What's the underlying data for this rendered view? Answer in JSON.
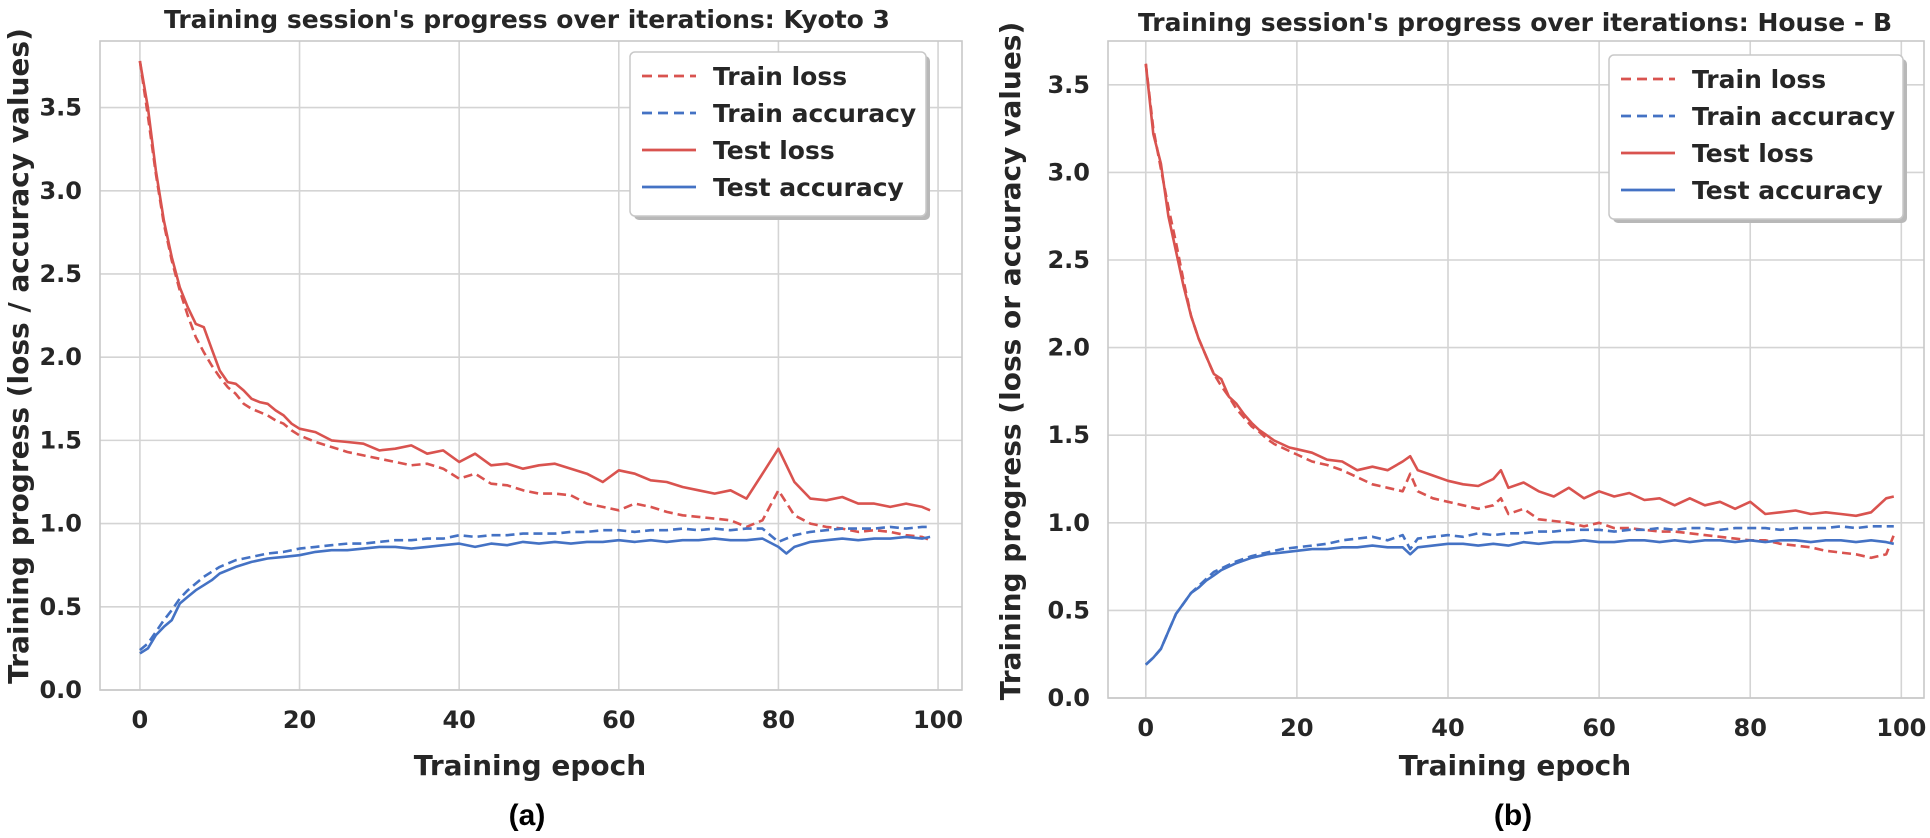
{
  "colors": {
    "red": "#d9534f",
    "blue": "#4472c4"
  },
  "legend_entries": [
    {
      "label": "Train loss",
      "color": "#d9534f",
      "dash": true
    },
    {
      "label": "Train accuracy",
      "color": "#4472c4",
      "dash": true
    },
    {
      "label": "Test loss",
      "color": "#d9534f",
      "dash": false
    },
    {
      "label": "Test accuracy",
      "color": "#4472c4",
      "dash": false
    }
  ],
  "chart_data": [
    {
      "type": "line",
      "panel": "(a)",
      "title": "Training session's progress over iterations: Kyoto 3",
      "xlabel": "Training epoch",
      "ylabel": "Training progress (loss / accuracy values)",
      "xlim": [
        -5,
        103
      ],
      "ylim": [
        0.0,
        3.9
      ],
      "xticks": [
        0,
        20,
        40,
        60,
        80,
        100
      ],
      "yticks": [
        0.0,
        0.5,
        1.0,
        1.5,
        2.0,
        2.5,
        3.0,
        3.5
      ],
      "legend_position": "top-right",
      "grid": true,
      "series": [
        {
          "name": "Train loss",
          "color": "#d9534f",
          "dash": true,
          "x": [
            0,
            1,
            2,
            3,
            4,
            5,
            6,
            7,
            8,
            9,
            10,
            11,
            12,
            13,
            14,
            15,
            16,
            17,
            18,
            19,
            20,
            22,
            24,
            26,
            28,
            30,
            32,
            34,
            36,
            38,
            40,
            42,
            44,
            46,
            48,
            50,
            52,
            54,
            56,
            58,
            60,
            62,
            64,
            66,
            68,
            70,
            72,
            74,
            76,
            78,
            80,
            82,
            84,
            86,
            88,
            90,
            92,
            94,
            96,
            98,
            99
          ],
          "y": [
            3.78,
            3.45,
            3.1,
            2.8,
            2.58,
            2.4,
            2.25,
            2.12,
            2.03,
            1.95,
            1.88,
            1.82,
            1.78,
            1.72,
            1.69,
            1.67,
            1.65,
            1.62,
            1.6,
            1.56,
            1.53,
            1.49,
            1.46,
            1.43,
            1.41,
            1.39,
            1.37,
            1.35,
            1.36,
            1.33,
            1.27,
            1.3,
            1.24,
            1.23,
            1.2,
            1.18,
            1.18,
            1.17,
            1.12,
            1.1,
            1.08,
            1.12,
            1.1,
            1.07,
            1.05,
            1.04,
            1.03,
            1.02,
            0.98,
            1.02,
            1.2,
            1.05,
            1.0,
            0.98,
            0.97,
            0.95,
            0.96,
            0.95,
            0.93,
            0.92,
            0.9
          ]
        },
        {
          "name": "Train accuracy",
          "color": "#4472c4",
          "dash": true,
          "x": [
            0,
            1,
            2,
            3,
            4,
            5,
            6,
            7,
            8,
            9,
            10,
            12,
            14,
            16,
            18,
            20,
            22,
            24,
            26,
            28,
            30,
            32,
            34,
            36,
            38,
            40,
            42,
            44,
            46,
            48,
            50,
            52,
            54,
            56,
            58,
            60,
            62,
            64,
            66,
            68,
            70,
            72,
            74,
            76,
            78,
            80,
            82,
            84,
            86,
            88,
            90,
            92,
            94,
            96,
            98,
            99
          ],
          "y": [
            0.24,
            0.28,
            0.35,
            0.42,
            0.48,
            0.55,
            0.6,
            0.64,
            0.68,
            0.71,
            0.74,
            0.78,
            0.8,
            0.82,
            0.83,
            0.85,
            0.86,
            0.87,
            0.88,
            0.88,
            0.89,
            0.9,
            0.9,
            0.91,
            0.91,
            0.93,
            0.92,
            0.93,
            0.93,
            0.94,
            0.94,
            0.94,
            0.95,
            0.95,
            0.96,
            0.96,
            0.95,
            0.96,
            0.96,
            0.97,
            0.96,
            0.97,
            0.96,
            0.97,
            0.97,
            0.89,
            0.93,
            0.95,
            0.96,
            0.97,
            0.97,
            0.97,
            0.98,
            0.97,
            0.98,
            0.98
          ]
        },
        {
          "name": "Test loss",
          "color": "#d9534f",
          "dash": false,
          "x": [
            0,
            1,
            2,
            3,
            4,
            5,
            6,
            7,
            8,
            9,
            10,
            11,
            12,
            13,
            14,
            15,
            16,
            17,
            18,
            19,
            20,
            22,
            24,
            26,
            28,
            30,
            32,
            34,
            36,
            38,
            40,
            42,
            44,
            46,
            48,
            50,
            52,
            54,
            56,
            58,
            60,
            62,
            64,
            66,
            68,
            70,
            72,
            74,
            76,
            78,
            80,
            81,
            82,
            84,
            86,
            88,
            90,
            92,
            94,
            96,
            98,
            99
          ],
          "y": [
            3.78,
            3.5,
            3.12,
            2.82,
            2.6,
            2.42,
            2.3,
            2.2,
            2.18,
            2.05,
            1.92,
            1.85,
            1.84,
            1.8,
            1.75,
            1.73,
            1.72,
            1.68,
            1.65,
            1.6,
            1.57,
            1.55,
            1.5,
            1.49,
            1.48,
            1.44,
            1.45,
            1.47,
            1.42,
            1.44,
            1.37,
            1.42,
            1.35,
            1.36,
            1.33,
            1.35,
            1.36,
            1.33,
            1.3,
            1.25,
            1.32,
            1.3,
            1.26,
            1.25,
            1.22,
            1.2,
            1.18,
            1.2,
            1.15,
            1.3,
            1.45,
            1.35,
            1.25,
            1.15,
            1.14,
            1.16,
            1.12,
            1.12,
            1.1,
            1.12,
            1.1,
            1.08
          ]
        },
        {
          "name": "Test accuracy",
          "color": "#4472c4",
          "dash": false,
          "x": [
            0,
            1,
            2,
            3,
            4,
            5,
            6,
            7,
            8,
            9,
            10,
            12,
            14,
            16,
            18,
            20,
            22,
            24,
            26,
            28,
            30,
            32,
            34,
            36,
            38,
            40,
            42,
            44,
            46,
            48,
            50,
            52,
            54,
            56,
            58,
            60,
            62,
            64,
            66,
            68,
            70,
            72,
            74,
            76,
            78,
            80,
            81,
            82,
            84,
            86,
            88,
            90,
            92,
            94,
            96,
            98,
            99
          ],
          "y": [
            0.22,
            0.25,
            0.33,
            0.38,
            0.42,
            0.52,
            0.56,
            0.6,
            0.63,
            0.66,
            0.7,
            0.74,
            0.77,
            0.79,
            0.8,
            0.81,
            0.83,
            0.84,
            0.84,
            0.85,
            0.86,
            0.86,
            0.85,
            0.86,
            0.87,
            0.88,
            0.86,
            0.88,
            0.87,
            0.89,
            0.88,
            0.89,
            0.88,
            0.89,
            0.89,
            0.9,
            0.89,
            0.9,
            0.89,
            0.9,
            0.9,
            0.91,
            0.9,
            0.9,
            0.91,
            0.86,
            0.82,
            0.86,
            0.89,
            0.9,
            0.91,
            0.9,
            0.91,
            0.91,
            0.92,
            0.91,
            0.92
          ]
        }
      ]
    },
    {
      "type": "line",
      "panel": "(b)",
      "title": "Training session's progress over iterations: House - B",
      "xlabel": "Training epoch",
      "ylabel": "Training progress (loss or accuracy values)",
      "xlim": [
        -5,
        103
      ],
      "ylim": [
        0.0,
        3.75
      ],
      "xticks": [
        0,
        20,
        40,
        60,
        80,
        100
      ],
      "yticks": [
        0.0,
        0.5,
        1.0,
        1.5,
        2.0,
        2.5,
        3.0,
        3.5
      ],
      "legend_position": "top-right",
      "grid": true,
      "series": [
        {
          "name": "Train loss",
          "color": "#d9534f",
          "dash": true,
          "x": [
            0,
            1,
            2,
            3,
            4,
            5,
            6,
            7,
            8,
            9,
            10,
            11,
            12,
            13,
            14,
            15,
            16,
            17,
            18,
            19,
            20,
            22,
            24,
            26,
            28,
            30,
            32,
            34,
            35,
            36,
            38,
            40,
            42,
            44,
            46,
            47,
            48,
            50,
            52,
            54,
            56,
            58,
            60,
            62,
            64,
            66,
            68,
            70,
            72,
            74,
            76,
            78,
            80,
            82,
            84,
            86,
            88,
            90,
            92,
            94,
            96,
            98,
            99
          ],
          "y": [
            3.62,
            3.25,
            3.02,
            2.8,
            2.6,
            2.38,
            2.18,
            2.05,
            1.95,
            1.85,
            1.78,
            1.72,
            1.65,
            1.6,
            1.55,
            1.52,
            1.48,
            1.45,
            1.43,
            1.41,
            1.39,
            1.35,
            1.33,
            1.3,
            1.26,
            1.22,
            1.2,
            1.18,
            1.28,
            1.18,
            1.14,
            1.12,
            1.1,
            1.08,
            1.1,
            1.14,
            1.05,
            1.08,
            1.02,
            1.01,
            1.0,
            0.98,
            1.0,
            0.97,
            0.97,
            0.96,
            0.95,
            0.95,
            0.94,
            0.93,
            0.92,
            0.91,
            0.9,
            0.9,
            0.88,
            0.87,
            0.86,
            0.84,
            0.83,
            0.82,
            0.8,
            0.82,
            0.93
          ]
        },
        {
          "name": "Train accuracy",
          "color": "#4472c4",
          "dash": true,
          "x": [
            0,
            1,
            2,
            3,
            4,
            5,
            6,
            7,
            8,
            9,
            10,
            12,
            14,
            16,
            18,
            20,
            22,
            24,
            26,
            28,
            30,
            32,
            34,
            35,
            36,
            38,
            40,
            42,
            44,
            46,
            48,
            50,
            52,
            54,
            56,
            58,
            60,
            62,
            64,
            66,
            68,
            70,
            72,
            74,
            76,
            78,
            80,
            82,
            84,
            86,
            88,
            90,
            92,
            94,
            96,
            98,
            99
          ],
          "y": [
            0.19,
            0.23,
            0.28,
            0.38,
            0.48,
            0.54,
            0.6,
            0.64,
            0.68,
            0.72,
            0.74,
            0.78,
            0.81,
            0.83,
            0.85,
            0.86,
            0.87,
            0.88,
            0.9,
            0.91,
            0.92,
            0.9,
            0.93,
            0.85,
            0.91,
            0.92,
            0.93,
            0.92,
            0.94,
            0.93,
            0.94,
            0.94,
            0.95,
            0.95,
            0.96,
            0.96,
            0.96,
            0.95,
            0.96,
            0.96,
            0.97,
            0.96,
            0.97,
            0.97,
            0.96,
            0.97,
            0.97,
            0.97,
            0.96,
            0.97,
            0.97,
            0.97,
            0.98,
            0.97,
            0.98,
            0.98,
            0.98
          ]
        },
        {
          "name": "Test loss",
          "color": "#d9534f",
          "dash": false,
          "x": [
            0,
            1,
            2,
            3,
            4,
            5,
            6,
            7,
            8,
            9,
            10,
            11,
            12,
            13,
            14,
            15,
            16,
            17,
            18,
            19,
            20,
            22,
            24,
            26,
            28,
            30,
            32,
            34,
            35,
            36,
            38,
            40,
            42,
            44,
            46,
            47,
            48,
            50,
            52,
            54,
            56,
            58,
            60,
            62,
            64,
            66,
            68,
            70,
            72,
            74,
            76,
            78,
            80,
            82,
            84,
            86,
            88,
            90,
            92,
            94,
            96,
            98,
            99
          ],
          "y": [
            3.62,
            3.22,
            3.05,
            2.75,
            2.55,
            2.35,
            2.18,
            2.05,
            1.95,
            1.85,
            1.82,
            1.72,
            1.68,
            1.62,
            1.57,
            1.53,
            1.5,
            1.47,
            1.45,
            1.43,
            1.42,
            1.4,
            1.36,
            1.35,
            1.3,
            1.32,
            1.3,
            1.35,
            1.38,
            1.3,
            1.27,
            1.24,
            1.22,
            1.21,
            1.25,
            1.3,
            1.2,
            1.23,
            1.18,
            1.15,
            1.2,
            1.14,
            1.18,
            1.15,
            1.17,
            1.13,
            1.14,
            1.1,
            1.14,
            1.1,
            1.12,
            1.08,
            1.12,
            1.05,
            1.06,
            1.07,
            1.05,
            1.06,
            1.05,
            1.04,
            1.06,
            1.14,
            1.15
          ]
        },
        {
          "name": "Test accuracy",
          "color": "#4472c4",
          "dash": false,
          "x": [
            0,
            1,
            2,
            3,
            4,
            5,
            6,
            7,
            8,
            9,
            10,
            12,
            14,
            16,
            18,
            20,
            22,
            24,
            26,
            28,
            30,
            32,
            34,
            35,
            36,
            38,
            40,
            42,
            44,
            46,
            48,
            50,
            52,
            54,
            56,
            58,
            60,
            62,
            64,
            66,
            68,
            70,
            72,
            74,
            76,
            78,
            80,
            82,
            84,
            86,
            88,
            90,
            92,
            94,
            96,
            98,
            99
          ],
          "y": [
            0.19,
            0.23,
            0.28,
            0.38,
            0.48,
            0.54,
            0.6,
            0.63,
            0.67,
            0.7,
            0.73,
            0.77,
            0.8,
            0.82,
            0.83,
            0.84,
            0.85,
            0.85,
            0.86,
            0.86,
            0.87,
            0.86,
            0.86,
            0.82,
            0.86,
            0.87,
            0.88,
            0.88,
            0.87,
            0.88,
            0.87,
            0.89,
            0.88,
            0.89,
            0.89,
            0.9,
            0.89,
            0.89,
            0.9,
            0.9,
            0.89,
            0.9,
            0.89,
            0.9,
            0.9,
            0.89,
            0.9,
            0.89,
            0.9,
            0.9,
            0.89,
            0.9,
            0.9,
            0.89,
            0.9,
            0.89,
            0.88
          ]
        }
      ]
    }
  ],
  "captions": [
    "(a)",
    "(b)"
  ]
}
